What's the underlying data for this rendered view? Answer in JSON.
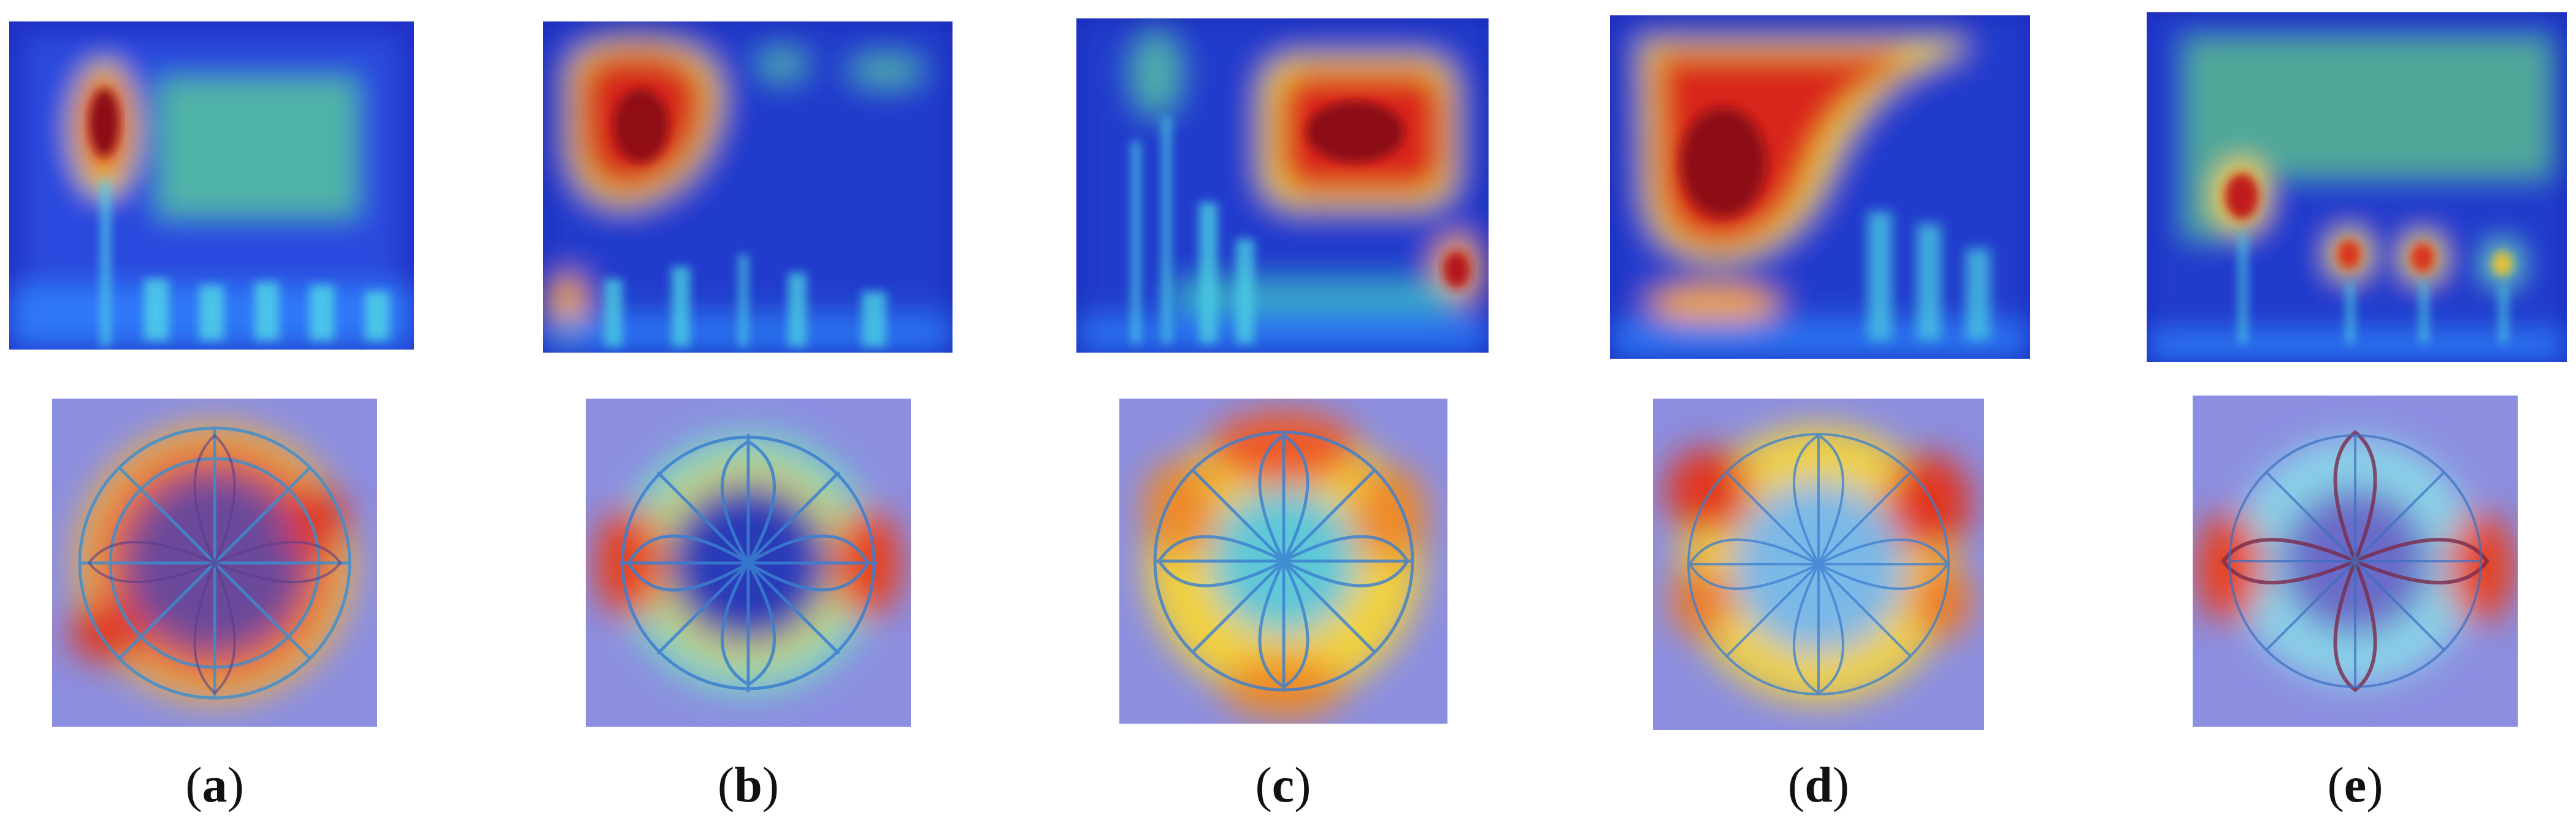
{
  "figure": {
    "columns": [
      {
        "id": "a",
        "caption_open": "(",
        "caption_letter": "a",
        "caption_close": ")"
      },
      {
        "id": "b",
        "caption_open": "(",
        "caption_letter": "b",
        "caption_close": ")"
      },
      {
        "id": "c",
        "caption_open": "(",
        "caption_letter": "c",
        "caption_close": ")"
      },
      {
        "id": "d",
        "caption_open": "(",
        "caption_letter": "d",
        "caption_close": ")"
      },
      {
        "id": "e",
        "caption_open": "(",
        "caption_letter": "e",
        "caption_close": ")"
      }
    ],
    "colors": {
      "cold": "#1a2fd0",
      "cool": "#2f8cff",
      "mid": "#3ad4d4",
      "warm": "#f5e44a",
      "hot": "#e0271b",
      "hottest": "#8c0a0a",
      "circle_bg": "#8c8ee0"
    }
  }
}
